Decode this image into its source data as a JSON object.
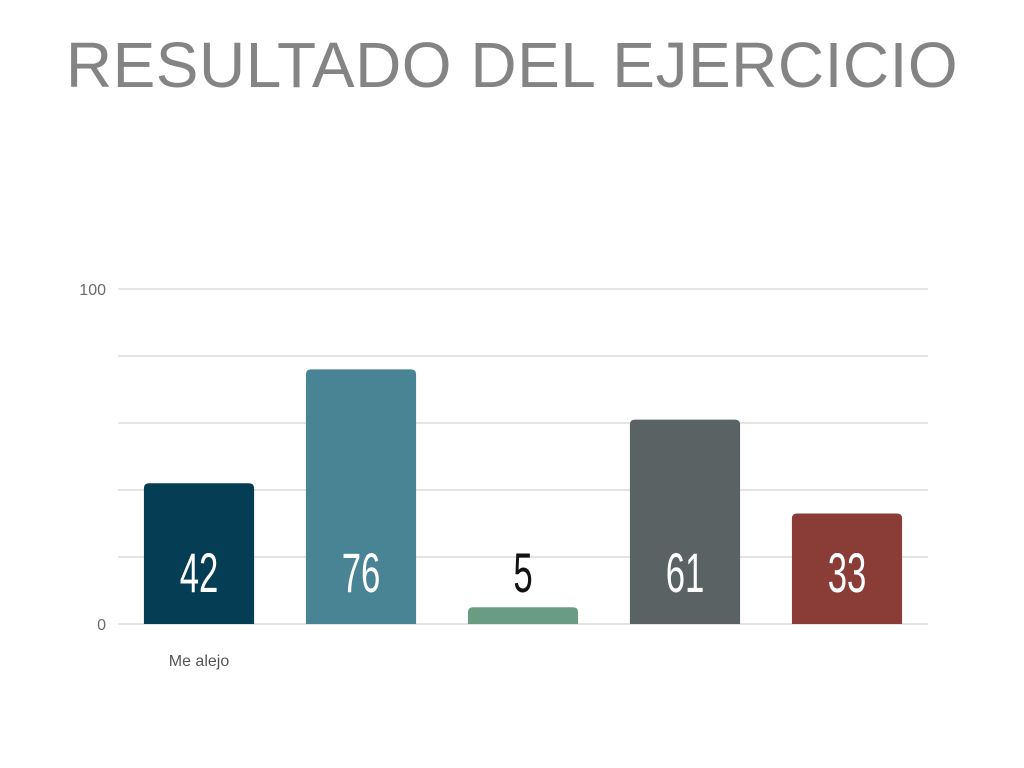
{
  "slide": {
    "title": "RESULTADO DEL EJERCICIO"
  },
  "chart_data": {
    "type": "bar",
    "categories": [
      "Me alejo",
      "",
      "",
      "",
      ""
    ],
    "values": [
      42,
      76,
      5,
      61,
      33
    ],
    "colors": [
      "#053e54",
      "#488494",
      "#6a9c84",
      "#5b6264",
      "#8a3c36"
    ],
    "label_colors": [
      "#ffffff",
      "#ffffff",
      "#111111",
      "#ffffff",
      "#ffffff"
    ],
    "ylim": [
      0,
      100
    ],
    "y_ticks": [
      "0",
      "100"
    ],
    "gridlines": 5,
    "grid": true,
    "title": "",
    "xlabel": "",
    "ylabel": ""
  }
}
